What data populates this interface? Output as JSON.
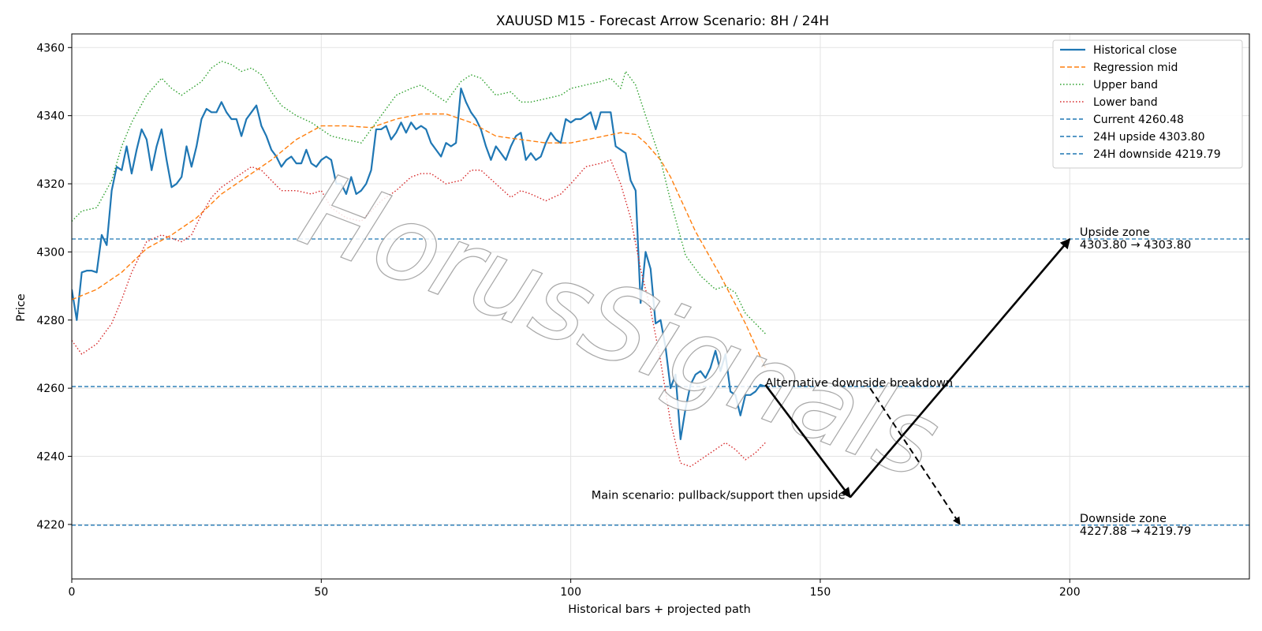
{
  "chart_data": {
    "type": "line",
    "title": "XAUUSD M15 - Forecast Arrow Scenario: 8H / 24H",
    "xlabel": "Historical bars + projected path",
    "ylabel": "Price",
    "xlim": [
      0,
      236
    ],
    "ylim": [
      4204,
      4364
    ],
    "xticks": [
      0,
      50,
      100,
      150,
      200
    ],
    "yticks": [
      4220,
      4240,
      4260,
      4280,
      4300,
      4320,
      4340,
      4360
    ],
    "grid": true,
    "legend_position": "top-right",
    "watermark": "HorusSignals",
    "series": [
      {
        "name": "Historical close",
        "color": "#1f77b4",
        "style": "solid",
        "x_start": 0,
        "values": [
          4289,
          4280,
          4294,
          4294.5,
          4294.5,
          4294,
          4305,
          4302,
          4318,
          4325,
          4324,
          4331,
          4323,
          4330,
          4336,
          4333,
          4324,
          4331,
          4336,
          4327,
          4319,
          4320,
          4322,
          4331,
          4325,
          4331,
          4339,
          4342,
          4341,
          4341,
          4344,
          4341,
          4339,
          4339,
          4334,
          4339,
          4341,
          4343,
          4337,
          4334,
          4330,
          4328,
          4325,
          4327,
          4328,
          4326,
          4326,
          4330,
          4326,
          4325,
          4327,
          4328,
          4327,
          4320,
          4320,
          4317,
          4322,
          4317,
          4318,
          4320,
          4324,
          4336,
          4336,
          4337,
          4333,
          4335,
          4338,
          4335,
          4338,
          4336,
          4337,
          4336,
          4332,
          4330,
          4328,
          4332,
          4331,
          4332,
          4348,
          4344,
          4341,
          4339,
          4336,
          4331,
          4327,
          4331,
          4329,
          4327,
          4331,
          4334,
          4335,
          4327,
          4329,
          4327,
          4328,
          4332,
          4335,
          4333,
          4332,
          4339,
          4338,
          4339,
          4339,
          4340,
          4341,
          4336,
          4341,
          4341,
          4341,
          4331,
          4330,
          4329,
          4321,
          4318,
          4285,
          4300,
          4295,
          4279,
          4280,
          4272,
          4260,
          4264,
          4245,
          4254,
          4261,
          4264,
          4265,
          4263,
          4266,
          4271,
          4265,
          4270,
          4259,
          4258,
          4252,
          4258,
          4258,
          4259,
          4261,
          4260.5
        ]
      },
      {
        "name": "Regression mid",
        "color": "#ff7f0e",
        "style": "dashed",
        "x": [
          0,
          5,
          10,
          15,
          20,
          25,
          30,
          35,
          40,
          45,
          50,
          55,
          60,
          65,
          70,
          75,
          80,
          85,
          90,
          95,
          100,
          105,
          110,
          113,
          115,
          118,
          120,
          125,
          130,
          135,
          139
        ],
        "values": [
          4286,
          4289,
          4294,
          4301,
          4305,
          4310,
          4317,
          4322,
          4327,
          4333,
          4337,
          4337,
          4336.5,
          4339,
          4340.5,
          4340.5,
          4338,
          4334,
          4333,
          4332,
          4332,
          4333.5,
          4335,
          4334.5,
          4332,
          4327,
          4322,
          4306,
          4293,
          4279,
          4266
        ]
      },
      {
        "name": "Upper band",
        "color": "#2ca02c",
        "style": "dotted",
        "x": [
          0,
          2,
          5,
          8,
          10,
          12,
          15,
          18,
          20,
          22,
          24,
          26,
          28,
          30,
          32,
          34,
          36,
          38,
          40,
          42,
          45,
          48,
          50,
          52,
          55,
          58,
          60,
          62,
          65,
          68,
          70,
          72,
          75,
          78,
          80,
          82,
          85,
          88,
          90,
          92,
          95,
          98,
          100,
          103,
          106,
          108,
          110,
          111,
          113,
          115,
          118,
          120,
          123,
          126,
          129,
          131,
          133,
          135,
          137,
          139
        ],
        "values": [
          4309,
          4312,
          4313,
          4321,
          4331,
          4338,
          4346,
          4351,
          4348,
          4346,
          4348,
          4350,
          4354,
          4356,
          4355,
          4353,
          4354,
          4352,
          4347,
          4343,
          4340,
          4338,
          4336,
          4334,
          4333,
          4332,
          4336,
          4340,
          4346,
          4348,
          4349,
          4347,
          4344,
          4350,
          4352,
          4351,
          4346,
          4347,
          4344,
          4344,
          4345,
          4346,
          4348,
          4349,
          4350,
          4351,
          4348,
          4353,
          4349,
          4340,
          4327,
          4315,
          4299,
          4293,
          4289,
          4290,
          4288,
          4282,
          4279,
          4276
        ]
      },
      {
        "name": "Lower band",
        "color": "#d62728",
        "style": "dotted",
        "x": [
          0,
          2,
          5,
          8,
          10,
          12,
          15,
          18,
          20,
          22,
          24,
          26,
          28,
          30,
          32,
          34,
          36,
          38,
          40,
          42,
          45,
          48,
          50,
          52,
          55,
          58,
          60,
          62,
          65,
          68,
          70,
          72,
          75,
          78,
          80,
          82,
          85,
          88,
          90,
          92,
          95,
          98,
          100,
          103,
          106,
          108,
          110,
          112,
          114,
          116,
          118,
          120,
          122,
          124,
          126,
          128,
          130,
          131,
          133,
          135,
          137,
          139
        ],
        "values": [
          4274,
          4270,
          4273,
          4279,
          4286,
          4294,
          4303,
          4305,
          4304,
          4303,
          4305,
          4311,
          4316,
          4319,
          4321,
          4323,
          4325,
          4324,
          4321,
          4318,
          4318,
          4317,
          4318,
          4313,
          4310,
          4309,
          4312,
          4315,
          4318,
          4322,
          4323,
          4323,
          4320,
          4321,
          4324,
          4324,
          4320,
          4316,
          4318,
          4317,
          4315,
          4317,
          4320,
          4325,
          4326,
          4327,
          4320,
          4310,
          4295,
          4283,
          4268,
          4250,
          4238,
          4237,
          4239,
          4241,
          4243,
          4244,
          4242,
          4239,
          4241,
          4244
        ]
      },
      {
        "name": "Current 4260.48",
        "color": "#1f77b4",
        "style": "dashed",
        "hline": 4260.48
      },
      {
        "name": "24H upside 4303.80",
        "color": "#1f77b4",
        "style": "dashed",
        "hline": 4303.8
      },
      {
        "name": "24H downside 4219.79",
        "color": "#1f77b4",
        "style": "dashed",
        "hline": 4219.79
      }
    ],
    "arrows": [
      {
        "name": "main-leg-1",
        "from": [
          139,
          4261
        ],
        "to": [
          156,
          4228
        ],
        "style": "solid"
      },
      {
        "name": "main-leg-2",
        "from": [
          156,
          4228
        ],
        "to": [
          200,
          4303.8
        ],
        "style": "solid"
      },
      {
        "name": "alt-breakdown",
        "from": [
          160,
          4260
        ],
        "to": [
          178,
          4220
        ],
        "style": "dashed"
      }
    ],
    "annotations": [
      {
        "name": "annot-alternative",
        "text": "Alternative downside breakdown",
        "x": 139,
        "y": 4260,
        "anchor": "start"
      },
      {
        "name": "annot-main",
        "text": "Main scenario: pullback/support then upside",
        "x": 155,
        "y": 4227,
        "anchor": "end"
      },
      {
        "name": "annot-upside-zone",
        "lines": [
          "Upside zone",
          "4303.80 → 4303.80"
        ],
        "x": 202,
        "y": 4303.8
      },
      {
        "name": "annot-downside-zone",
        "lines": [
          "Downside zone",
          "4227.88 → 4219.79"
        ],
        "x": 202,
        "y": 4219.79
      }
    ]
  }
}
